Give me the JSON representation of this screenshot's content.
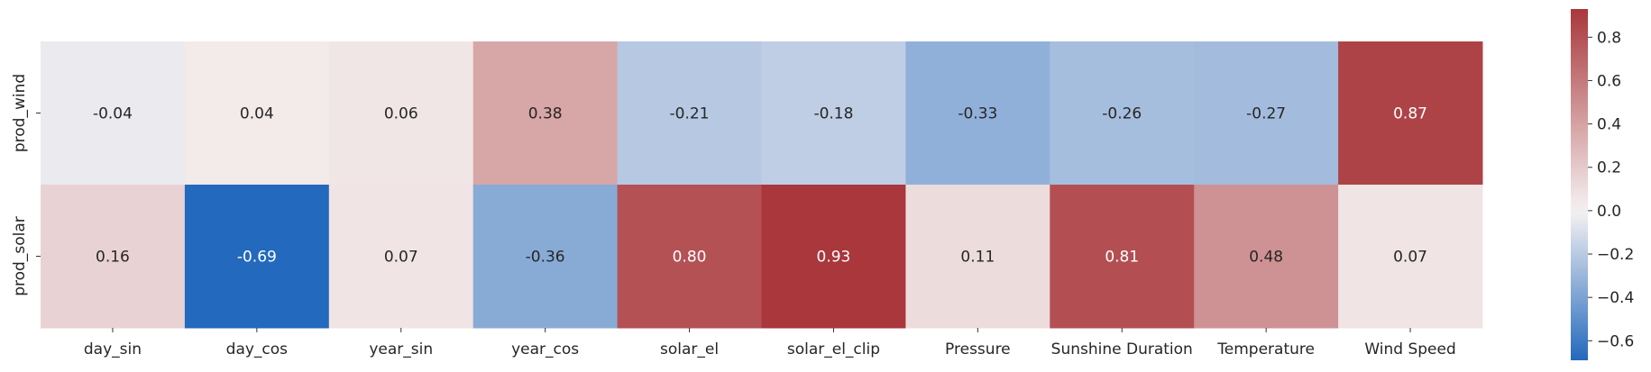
{
  "chart_data": {
    "type": "heatmap",
    "title": "",
    "xlabel": "",
    "ylabel": "",
    "x_categories": [
      "day_sin",
      "day_cos",
      "year_sin",
      "year_cos",
      "solar_el",
      "solar_el_clip",
      "Pressure",
      "Sunshine Duration",
      "Temperature",
      "Wind Speed"
    ],
    "y_categories": [
      "prod_wind",
      "prod_solar"
    ],
    "values": [
      [
        -0.04,
        0.04,
        0.06,
        0.38,
        -0.21,
        -0.18,
        -0.33,
        -0.26,
        -0.27,
        0.87
      ],
      [
        0.16,
        -0.69,
        0.07,
        -0.36,
        0.8,
        0.93,
        0.11,
        0.81,
        0.48,
        0.07
      ]
    ],
    "cell_labels": [
      [
        "-0.04",
        "0.04",
        "0.06",
        "0.38",
        "-0.21",
        "-0.18",
        "-0.33",
        "-0.26",
        "-0.27",
        "0.87"
      ],
      [
        "0.16",
        "-0.69",
        "0.07",
        "-0.36",
        "0.80",
        "0.93",
        "0.11",
        "0.81",
        "0.48",
        "0.07"
      ]
    ],
    "colormap": "vlag",
    "vmin": -0.69,
    "vmax": 0.93,
    "colors": {
      "low": "#2369bd",
      "mid": "#f6f2f2",
      "high": "#a9373b"
    },
    "colorbar": {
      "ticks": [
        -0.6,
        -0.4,
        -0.2,
        0.0,
        0.2,
        0.4,
        0.6,
        0.8
      ],
      "tick_labels": [
        "−0.6",
        "−0.4",
        "−0.2",
        "0.0",
        "0.2",
        "0.4",
        "0.6",
        "0.8"
      ],
      "placement": "right"
    },
    "grid": false
  }
}
